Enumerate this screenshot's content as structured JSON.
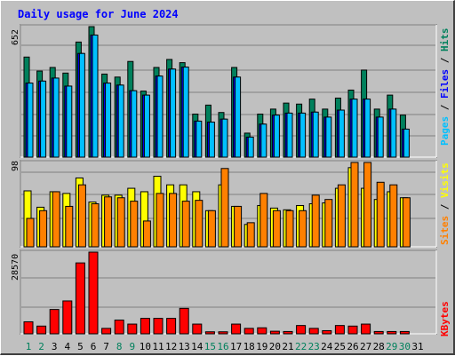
{
  "title": "Daily usage for June 2024",
  "colors": {
    "hits": "#00805c",
    "files": "#0000ff",
    "pages": "#00c0ff",
    "visits": "#ffff00",
    "sites": "#ff8000",
    "kbytes": "#ff0000",
    "weekend_day": "#00805c",
    "weekday": "#000000"
  },
  "legend": {
    "hits": "Hits",
    "files": "Files",
    "pages": "Pages",
    "visits": "Visits",
    "sites": "Sites",
    "kbytes": "KBytes",
    "sep": "/"
  },
  "chart_data": [
    {
      "type": "bar",
      "panel": "hits-files-pages",
      "ymax_label": "652",
      "ylim": [
        0,
        652
      ],
      "categories": [
        "1",
        "2",
        "3",
        "4",
        "5",
        "6",
        "7",
        "8",
        "9",
        "10",
        "11",
        "12",
        "13",
        "14",
        "15",
        "16",
        "17",
        "18",
        "19",
        "20",
        "21",
        "22",
        "23",
        "24",
        "25",
        "26",
        "27",
        "28",
        "29",
        "30"
      ],
      "series": [
        {
          "name": "Hits",
          "values": [
            500,
            430,
            448,
            420,
            575,
            652,
            415,
            400,
            478,
            330,
            448,
            488,
            472,
            215,
            260,
            223,
            448,
            120,
            215,
            240,
            270,
            265,
            290,
            240,
            295,
            335,
            435,
            240,
            310,
            210
          ]
        },
        {
          "name": "Files",
          "values": [
            370,
            380,
            395,
            355,
            518,
            610,
            370,
            360,
            332,
            310,
            405,
            440,
            450,
            180,
            175,
            190,
            400,
            100,
            165,
            210,
            220,
            220,
            225,
            200,
            235,
            290,
            290,
            200,
            240,
            140
          ]
        },
        {
          "name": "Pages",
          "values": [
            370,
            380,
            395,
            355,
            518,
            610,
            370,
            360,
            332,
            310,
            405,
            440,
            450,
            180,
            175,
            190,
            400,
            100,
            165,
            210,
            220,
            220,
            225,
            200,
            235,
            290,
            290,
            200,
            240,
            140
          ]
        }
      ]
    },
    {
      "type": "bar",
      "panel": "visits-sites",
      "ymax_label": "98",
      "ylim": [
        0,
        98
      ],
      "categories": [
        "1",
        "2",
        "3",
        "4",
        "5",
        "6",
        "7",
        "8",
        "9",
        "10",
        "11",
        "12",
        "13",
        "14",
        "15",
        "16",
        "17",
        "18",
        "19",
        "20",
        "21",
        "22",
        "23",
        "24",
        "25",
        "26",
        "27",
        "28",
        "29",
        "30"
      ],
      "series": [
        {
          "name": "Visits",
          "values": [
            65,
            46,
            64,
            62,
            80,
            52,
            60,
            60,
            68,
            64,
            82,
            72,
            72,
            64,
            42,
            72,
            47,
            26,
            48,
            45,
            43,
            48,
            50,
            51,
            68,
            92,
            68,
            55,
            64,
            57
          ]
        },
        {
          "name": "Sites",
          "values": [
            33,
            42,
            64,
            47,
            72,
            50,
            58,
            57,
            53,
            30,
            62,
            62,
            53,
            54,
            42,
            91,
            47,
            28,
            62,
            42,
            42,
            42,
            60,
            55,
            72,
            98,
            98,
            75,
            72,
            57
          ]
        }
      ]
    },
    {
      "type": "bar",
      "panel": "kbytes",
      "ymax_label": "28570",
      "ylim": [
        0,
        28570
      ],
      "categories": [
        "1",
        "2",
        "3",
        "4",
        "5",
        "6",
        "7",
        "8",
        "9",
        "10",
        "11",
        "12",
        "13",
        "14",
        "15",
        "16",
        "17",
        "18",
        "19",
        "20",
        "21",
        "22",
        "23",
        "24",
        "25",
        "26",
        "27",
        "28",
        "29",
        "30"
      ],
      "series": [
        {
          "name": "KBytes",
          "values": [
            4200,
            2700,
            8500,
            11500,
            24800,
            28570,
            1900,
            4800,
            3400,
            5400,
            5400,
            5400,
            8900,
            3400,
            700,
            700,
            3400,
            1900,
            2100,
            900,
            800,
            2900,
            1900,
            1100,
            2900,
            2700,
            3400,
            800,
            800,
            800
          ]
        }
      ]
    }
  ],
  "x_labels": [
    "1",
    "2",
    "3",
    "4",
    "5",
    "6",
    "7",
    "8",
    "9",
    "10",
    "11",
    "12",
    "13",
    "14",
    "15",
    "16",
    "17",
    "18",
    "19",
    "20",
    "21",
    "22",
    "23",
    "24",
    "25",
    "26",
    "27",
    "28",
    "29",
    "30",
    "31"
  ],
  "weekend_days": [
    "1",
    "2",
    "8",
    "9",
    "15",
    "16",
    "22",
    "23",
    "29",
    "30"
  ]
}
